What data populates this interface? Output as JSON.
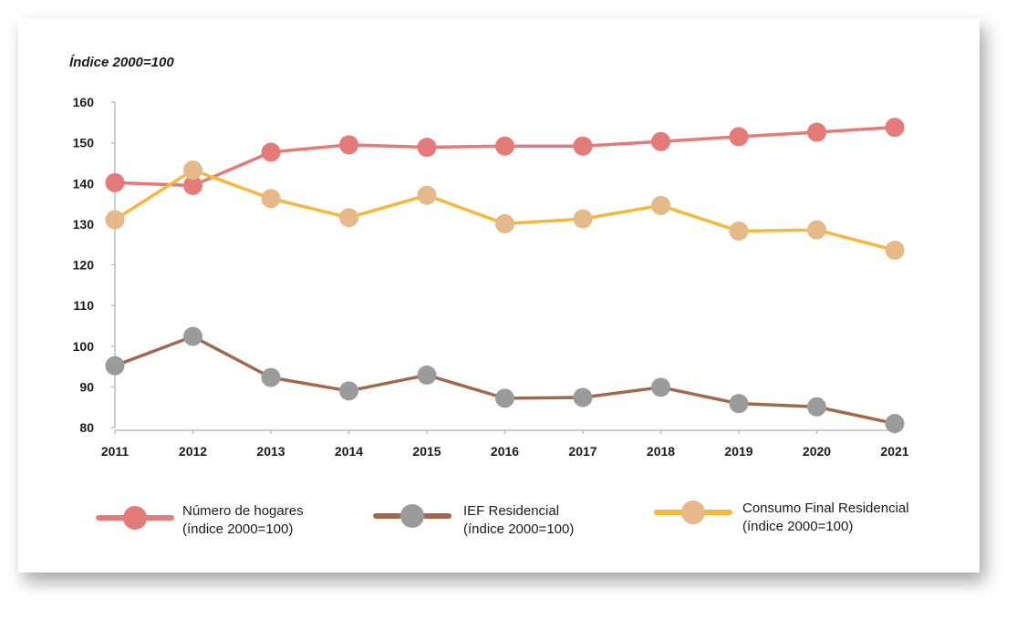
{
  "chart_data": {
    "type": "line",
    "title": "",
    "ylabel": "Índice 2000=100",
    "xlabel": "",
    "x": [
      "2011",
      "2012",
      "2013",
      "2014",
      "2015",
      "2016",
      "2017",
      "2018",
      "2019",
      "2020",
      "2021"
    ],
    "ylim": [
      80,
      160
    ],
    "yticks": [
      80,
      90,
      100,
      110,
      120,
      130,
      140,
      150,
      160
    ],
    "grid": false,
    "legend_position": "bottom",
    "series": [
      {
        "name": "Número de hogares",
        "name_line2": "(índice 2000=100)",
        "line_color": "#e57b78",
        "marker_color": "#e57b78",
        "values": [
          140.2,
          139.5,
          147.7,
          149.5,
          148.9,
          149.2,
          149.2,
          150.3,
          151.5,
          152.6,
          153.8
        ]
      },
      {
        "name": "IEF Residencial",
        "name_line2": "(índice 2000=100)",
        "line_color": "#a0694d",
        "marker_color": "#9b9b9b",
        "values": [
          95.2,
          102.4,
          92.3,
          89.0,
          92.9,
          87.2,
          87.4,
          89.9,
          85.9,
          85.1,
          81.0
        ]
      },
      {
        "name": "Consumo Final Residencial",
        "name_line2": "(índice 2000=100)",
        "line_color": "#f6b83c",
        "marker_color": "#e6b98a",
        "values": [
          131.1,
          143.3,
          136.3,
          131.6,
          137.1,
          130.1,
          131.3,
          134.6,
          128.3,
          128.6,
          123.6
        ]
      }
    ]
  }
}
